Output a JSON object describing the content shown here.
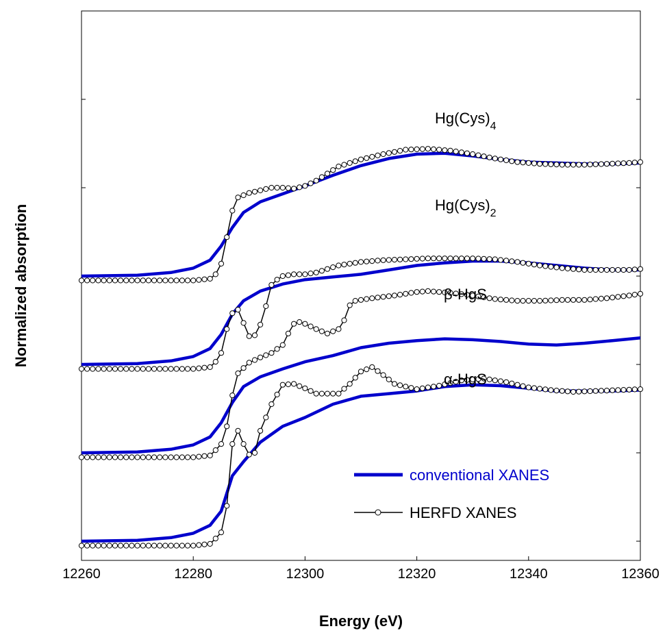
{
  "chart_data": {
    "type": "line",
    "xlabel": "Energy (eV)",
    "ylabel": "Normalized absorption",
    "xlim": [
      12260,
      12360
    ],
    "x_ticks": [
      "12260",
      "12280",
      "12300",
      "12320",
      "12340",
      "12360"
    ],
    "grid": false,
    "legend_position": "bottom-right",
    "legend": [
      {
        "label": "conventional XANES",
        "color": "#0000cc"
      },
      {
        "label": "HERFD XANES",
        "color": "#000000"
      }
    ],
    "spectra": [
      {
        "label_main": "Hg(Cys)",
        "label_sub": "4",
        "offset": 3.0,
        "conventional": [
          [
            12260,
            0.0
          ],
          [
            12270,
            0.01
          ],
          [
            12276,
            0.04
          ],
          [
            12280,
            0.09
          ],
          [
            12283,
            0.18
          ],
          [
            12285,
            0.34
          ],
          [
            12287,
            0.55
          ],
          [
            12289,
            0.72
          ],
          [
            12292,
            0.84
          ],
          [
            12296,
            0.93
          ],
          [
            12300,
            1.02
          ],
          [
            12305,
            1.14
          ],
          [
            12310,
            1.25
          ],
          [
            12315,
            1.33
          ],
          [
            12320,
            1.38
          ],
          [
            12325,
            1.39
          ],
          [
            12330,
            1.36
          ],
          [
            12335,
            1.32
          ],
          [
            12340,
            1.29
          ],
          [
            12345,
            1.28
          ],
          [
            12350,
            1.27
          ],
          [
            12355,
            1.27
          ],
          [
            12360,
            1.28
          ]
        ],
        "herfd": [
          [
            12260,
            -0.05
          ],
          [
            12270,
            -0.05
          ],
          [
            12280,
            -0.05
          ],
          [
            12283,
            -0.03
          ],
          [
            12284,
            0.02
          ],
          [
            12285,
            0.14
          ],
          [
            12286,
            0.44
          ],
          [
            12287,
            0.74
          ],
          [
            12288,
            0.89
          ],
          [
            12290,
            0.94
          ],
          [
            12292,
            0.97
          ],
          [
            12294,
            1.0
          ],
          [
            12296,
            1.0
          ],
          [
            12298,
            0.99
          ],
          [
            12300,
            1.02
          ],
          [
            12302,
            1.08
          ],
          [
            12304,
            1.16
          ],
          [
            12306,
            1.24
          ],
          [
            12308,
            1.28
          ],
          [
            12310,
            1.32
          ],
          [
            12314,
            1.38
          ],
          [
            12318,
            1.43
          ],
          [
            12322,
            1.44
          ],
          [
            12326,
            1.42
          ],
          [
            12330,
            1.38
          ],
          [
            12334,
            1.33
          ],
          [
            12338,
            1.29
          ],
          [
            12342,
            1.27
          ],
          [
            12346,
            1.26
          ],
          [
            12350,
            1.26
          ],
          [
            12354,
            1.27
          ],
          [
            12358,
            1.28
          ],
          [
            12360,
            1.29
          ]
        ]
      },
      {
        "label_main": "Hg(Cys)",
        "label_sub": "2",
        "offset": 2.0,
        "conventional": [
          [
            12260,
            0.0
          ],
          [
            12270,
            0.01
          ],
          [
            12276,
            0.04
          ],
          [
            12280,
            0.09
          ],
          [
            12283,
            0.18
          ],
          [
            12285,
            0.34
          ],
          [
            12287,
            0.57
          ],
          [
            12289,
            0.72
          ],
          [
            12292,
            0.83
          ],
          [
            12296,
            0.91
          ],
          [
            12300,
            0.96
          ],
          [
            12305,
            0.99
          ],
          [
            12310,
            1.02
          ],
          [
            12315,
            1.07
          ],
          [
            12320,
            1.12
          ],
          [
            12325,
            1.15
          ],
          [
            12330,
            1.17
          ],
          [
            12335,
            1.17
          ],
          [
            12340,
            1.15
          ],
          [
            12345,
            1.12
          ],
          [
            12350,
            1.09
          ],
          [
            12355,
            1.07
          ],
          [
            12360,
            1.07
          ]
        ],
        "herfd": [
          [
            12260,
            -0.05
          ],
          [
            12270,
            -0.05
          ],
          [
            12280,
            -0.05
          ],
          [
            12283,
            -0.03
          ],
          [
            12284,
            0.03
          ],
          [
            12285,
            0.13
          ],
          [
            12286,
            0.4
          ],
          [
            12287,
            0.58
          ],
          [
            12288,
            0.62
          ],
          [
            12289,
            0.47
          ],
          [
            12290,
            0.32
          ],
          [
            12291,
            0.33
          ],
          [
            12292,
            0.45
          ],
          [
            12293,
            0.66
          ],
          [
            12294,
            0.9
          ],
          [
            12295,
            0.96
          ],
          [
            12296,
            1.0
          ],
          [
            12298,
            1.02
          ],
          [
            12300,
            1.02
          ],
          [
            12302,
            1.04
          ],
          [
            12304,
            1.08
          ],
          [
            12306,
            1.12
          ],
          [
            12310,
            1.16
          ],
          [
            12314,
            1.18
          ],
          [
            12318,
            1.19
          ],
          [
            12322,
            1.2
          ],
          [
            12326,
            1.2
          ],
          [
            12330,
            1.2
          ],
          [
            12334,
            1.19
          ],
          [
            12338,
            1.16
          ],
          [
            12342,
            1.12
          ],
          [
            12346,
            1.09
          ],
          [
            12350,
            1.07
          ],
          [
            12354,
            1.07
          ],
          [
            12358,
            1.07
          ],
          [
            12360,
            1.08
          ]
        ]
      },
      {
        "label_main": "β-HgS",
        "label_sub": "",
        "offset": 1.0,
        "conventional": [
          [
            12260,
            0.0
          ],
          [
            12270,
            0.01
          ],
          [
            12276,
            0.04
          ],
          [
            12280,
            0.09
          ],
          [
            12283,
            0.18
          ],
          [
            12285,
            0.34
          ],
          [
            12287,
            0.57
          ],
          [
            12289,
            0.75
          ],
          [
            12292,
            0.86
          ],
          [
            12296,
            0.95
          ],
          [
            12300,
            1.03
          ],
          [
            12305,
            1.1
          ],
          [
            12310,
            1.19
          ],
          [
            12315,
            1.24
          ],
          [
            12320,
            1.27
          ],
          [
            12325,
            1.29
          ],
          [
            12330,
            1.28
          ],
          [
            12335,
            1.26
          ],
          [
            12340,
            1.23
          ],
          [
            12345,
            1.22
          ],
          [
            12350,
            1.24
          ],
          [
            12355,
            1.27
          ],
          [
            12360,
            1.3
          ]
        ],
        "herfd": [
          [
            12260,
            -0.05
          ],
          [
            12270,
            -0.05
          ],
          [
            12280,
            -0.05
          ],
          [
            12283,
            -0.03
          ],
          [
            12284,
            0.03
          ],
          [
            12285,
            0.1
          ],
          [
            12286,
            0.3
          ],
          [
            12287,
            0.65
          ],
          [
            12288,
            0.9
          ],
          [
            12290,
            1.02
          ],
          [
            12292,
            1.08
          ],
          [
            12294,
            1.13
          ],
          [
            12296,
            1.22
          ],
          [
            12297,
            1.35
          ],
          [
            12298,
            1.46
          ],
          [
            12299,
            1.48
          ],
          [
            12300,
            1.46
          ],
          [
            12302,
            1.4
          ],
          [
            12304,
            1.35
          ],
          [
            12306,
            1.4
          ],
          [
            12307,
            1.5
          ],
          [
            12308,
            1.67
          ],
          [
            12309,
            1.72
          ],
          [
            12312,
            1.75
          ],
          [
            12316,
            1.78
          ],
          [
            12320,
            1.82
          ],
          [
            12322,
            1.83
          ],
          [
            12326,
            1.81
          ],
          [
            12330,
            1.78
          ],
          [
            12334,
            1.74
          ],
          [
            12338,
            1.72
          ],
          [
            12342,
            1.72
          ],
          [
            12346,
            1.73
          ],
          [
            12350,
            1.73
          ],
          [
            12354,
            1.75
          ],
          [
            12358,
            1.78
          ],
          [
            12360,
            1.8
          ]
        ]
      },
      {
        "label_main": "α-HgS",
        "label_sub": "",
        "offset": 0.0,
        "conventional": [
          [
            12260,
            0.0
          ],
          [
            12270,
            0.01
          ],
          [
            12276,
            0.04
          ],
          [
            12280,
            0.09
          ],
          [
            12283,
            0.18
          ],
          [
            12285,
            0.34
          ],
          [
            12287,
            0.74
          ],
          [
            12289,
            0.9
          ],
          [
            12292,
            1.12
          ],
          [
            12296,
            1.3
          ],
          [
            12300,
            1.4
          ],
          [
            12305,
            1.55
          ],
          [
            12310,
            1.64
          ],
          [
            12315,
            1.67
          ],
          [
            12320,
            1.7
          ],
          [
            12325,
            1.75
          ],
          [
            12330,
            1.77
          ],
          [
            12335,
            1.76
          ],
          [
            12340,
            1.73
          ],
          [
            12345,
            1.7
          ],
          [
            12350,
            1.7
          ],
          [
            12355,
            1.7
          ],
          [
            12360,
            1.71
          ]
        ],
        "herfd": [
          [
            12260,
            -0.05
          ],
          [
            12270,
            -0.05
          ],
          [
            12280,
            -0.05
          ],
          [
            12283,
            -0.03
          ],
          [
            12284,
            0.03
          ],
          [
            12285,
            0.1
          ],
          [
            12286,
            0.4
          ],
          [
            12287,
            1.1
          ],
          [
            12288,
            1.25
          ],
          [
            12289,
            1.1
          ],
          [
            12290,
            0.98
          ],
          [
            12291,
            1.0
          ],
          [
            12292,
            1.25
          ],
          [
            12294,
            1.55
          ],
          [
            12296,
            1.77
          ],
          [
            12298,
            1.78
          ],
          [
            12300,
            1.73
          ],
          [
            12302,
            1.67
          ],
          [
            12306,
            1.67
          ],
          [
            12308,
            1.78
          ],
          [
            12310,
            1.92
          ],
          [
            12312,
            1.97
          ],
          [
            12314,
            1.88
          ],
          [
            12316,
            1.78
          ],
          [
            12320,
            1.72
          ],
          [
            12324,
            1.76
          ],
          [
            12328,
            1.82
          ],
          [
            12332,
            1.84
          ],
          [
            12336,
            1.8
          ],
          [
            12340,
            1.74
          ],
          [
            12344,
            1.71
          ],
          [
            12348,
            1.69
          ],
          [
            12352,
            1.7
          ],
          [
            12356,
            1.71
          ],
          [
            12360,
            1.72
          ]
        ]
      }
    ]
  }
}
